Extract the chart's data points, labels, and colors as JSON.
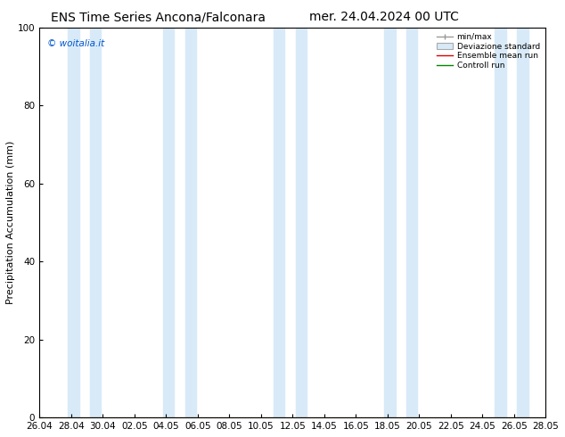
{
  "title_left": "ENS Time Series Ancona/Falconara",
  "title_right": "mer. 24.04.2024 00 UTC",
  "ylabel": "Precipitation Accumulation (mm)",
  "watermark": "© woitalia.it",
  "ylim": [
    0,
    100
  ],
  "yticks": [
    0,
    20,
    40,
    60,
    80,
    100
  ],
  "xtick_labels": [
    "26.04",
    "28.04",
    "30.04",
    "02.05",
    "04.05",
    "06.05",
    "08.05",
    "10.05",
    "12.05",
    "14.05",
    "16.05",
    "18.05",
    "20.05",
    "22.05",
    "24.05",
    "26.05",
    "28.05"
  ],
  "xmin": 0,
  "xmax": 32,
  "background_color": "#ffffff",
  "band_color": "#d8eaf8",
  "band_positions": [
    [
      1.8,
      2.5
    ],
    [
      3.2,
      3.9
    ],
    [
      7.8,
      8.5
    ],
    [
      9.2,
      9.9
    ],
    [
      14.8,
      15.5
    ],
    [
      16.2,
      16.9
    ],
    [
      21.8,
      22.5
    ],
    [
      23.2,
      23.9
    ],
    [
      28.8,
      29.5
    ],
    [
      30.2,
      30.9
    ]
  ],
  "title_fontsize": 10,
  "tick_fontsize": 7.5,
  "ylabel_fontsize": 8,
  "watermark_color": "#0055cc",
  "watermark_fontsize": 7.5
}
